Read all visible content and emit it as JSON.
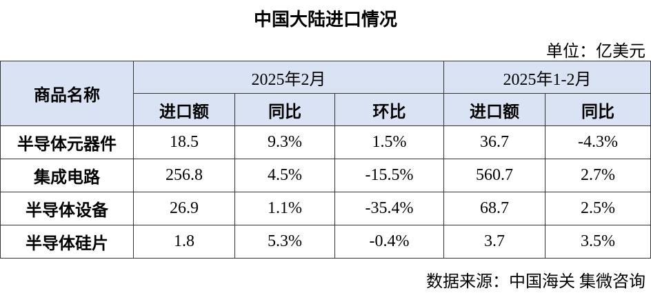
{
  "title": "中国大陆进口情况",
  "unit": "单位：亿美元",
  "table": {
    "corner": "商品名称",
    "groups": [
      "2025年2月",
      "2025年1-2月"
    ],
    "subheaders": [
      "进口额",
      "同比",
      "环比",
      "进口额",
      "同比"
    ],
    "rows": [
      [
        "半导体元器件",
        "18.5",
        "9.3%",
        "1.5%",
        "36.7",
        "-4.3%"
      ],
      [
        "集成电路",
        "256.8",
        "4.5%",
        "-15.5%",
        "560.7",
        "2.7%"
      ],
      [
        "半导体设备",
        "26.9",
        "1.1%",
        "-35.4%",
        "68.7",
        "2.5%"
      ],
      [
        "半导体硅片",
        "1.8",
        "5.3%",
        "-0.4%",
        "3.7",
        "3.5%"
      ]
    ]
  },
  "source": "数据来源：中国海关 集微咨询"
}
